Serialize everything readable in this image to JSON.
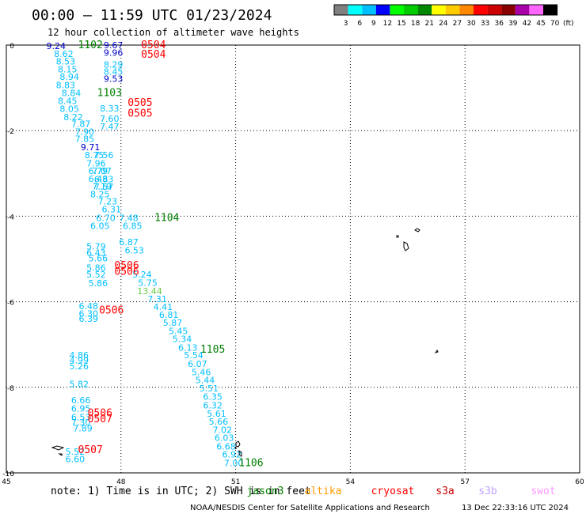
{
  "header": {
    "title": "00:00 – 11:59 UTC 01/23/2024",
    "subtitle": "12 hour collection of altimeter wave heights"
  },
  "legend": {
    "unit": "(ft)",
    "bins": [
      {
        "label": "3",
        "color": "#808080"
      },
      {
        "label": "6",
        "color": "#00ffff"
      },
      {
        "label": "9",
        "color": "#00bfff"
      },
      {
        "label": "12",
        "color": "#0000ff"
      },
      {
        "label": "15",
        "color": "#00ff00"
      },
      {
        "label": "18",
        "color": "#00cc00"
      },
      {
        "label": "21",
        "color": "#008800"
      },
      {
        "label": "24",
        "color": "#ffff00"
      },
      {
        "label": "27",
        "color": "#ffcc00"
      },
      {
        "label": "30",
        "color": "#ff8800"
      },
      {
        "label": "33",
        "color": "#ff0000"
      },
      {
        "label": "36",
        "color": "#cc0000"
      },
      {
        "label": "39",
        "color": "#880000"
      },
      {
        "label": "42",
        "color": "#aa00aa"
      },
      {
        "label": "45",
        "color": "#ff66ff"
      },
      {
        "label": "70",
        "color": "#000000"
      }
    ]
  },
  "footer": {
    "note": "note:  1) Time is in UTC;  2) SWH is in feet",
    "satellites": [
      {
        "name": "jason3",
        "color": "#008000"
      },
      {
        "name": "altika",
        "color": "#ff9900"
      },
      {
        "name": "cryosat",
        "color": "#ff0000"
      },
      {
        "name": "s3a",
        "color": "#cc0000"
      },
      {
        "name": "s3b",
        "color": "#c0a0ff"
      },
      {
        "name": "swot",
        "color": "#ff99ff"
      }
    ],
    "credit": "NOAA/NESDIS Center for Satellite Applications and Research",
    "timestamp": "13 Dec 22:33:16 UTC 2024"
  },
  "chart_data": {
    "type": "scatter",
    "title": "00:00 – 11:59 UTC 01/23/2024",
    "subtitle": "12 hour collection of altimeter wave heights",
    "xlabel": "",
    "ylabel": "",
    "xlim": [
      45,
      60
    ],
    "ylim": [
      -10,
      0
    ],
    "xticks": [
      "45",
      "48",
      "51",
      "54",
      "57",
      "60"
    ],
    "yticks": [
      "0",
      "-2",
      "-4",
      "-6",
      "-8",
      "-10"
    ],
    "grid": true,
    "colors": {
      "light": "#00bfff",
      "mid": "#0000cd",
      "high": "#66cc44",
      "time": "#ff0000",
      "time_alt": "#008000"
    },
    "series": [
      {
        "name": "",
        "points": [
          {
            "x": 46.3,
            "y": -0.02,
            "v": "9.24",
            "c": "mid"
          },
          {
            "x": 46.5,
            "y": -0.2,
            "v": "8.62",
            "c": "light"
          },
          {
            "x": 46.55,
            "y": -0.38,
            "v": "8.53",
            "c": "light"
          },
          {
            "x": 46.6,
            "y": -0.56,
            "v": "8.15",
            "c": "light"
          },
          {
            "x": 46.65,
            "y": -0.74,
            "v": "8.94",
            "c": "light"
          },
          {
            "x": 46.55,
            "y": -0.93,
            "v": "8.83",
            "c": "light"
          },
          {
            "x": 46.7,
            "y": -1.12,
            "v": "8.84",
            "c": "light"
          },
          {
            "x": 46.6,
            "y": -1.3,
            "v": "8.45",
            "c": "light"
          },
          {
            "x": 46.65,
            "y": -1.49,
            "v": "8.05",
            "c": "light"
          },
          {
            "x": 46.75,
            "y": -1.68,
            "v": "8.22",
            "c": "light"
          },
          {
            "x": 46.95,
            "y": -1.84,
            "v": "7.87",
            "c": "light"
          },
          {
            "x": 47.05,
            "y": -2.02,
            "v": "7.90",
            "c": "light"
          },
          {
            "x": 47.05,
            "y": -2.19,
            "v": "7.85",
            "c": "light"
          },
          {
            "x": 47.2,
            "y": -2.38,
            "v": "9.71",
            "c": "mid"
          },
          {
            "x": 47.3,
            "y": -2.57,
            "v": "8.75",
            "c": "light"
          },
          {
            "x": 47.35,
            "y": -2.76,
            "v": "7.96",
            "c": "light"
          },
          {
            "x": 47.4,
            "y": -2.94,
            "v": "6.79",
            "c": "light"
          },
          {
            "x": 47.4,
            "y": -3.12,
            "v": "6.48",
            "c": "light"
          },
          {
            "x": 47.5,
            "y": -3.3,
            "v": "7.19",
            "c": "light"
          },
          {
            "x": 47.45,
            "y": -3.48,
            "v": "8.25",
            "c": "light"
          },
          {
            "x": 47.65,
            "y": -3.65,
            "v": "7.23",
            "c": "light"
          },
          {
            "x": 47.75,
            "y": -3.84,
            "v": "6.31",
            "c": "light"
          },
          {
            "x": 47.6,
            "y": -4.04,
            "v": "6.70",
            "c": "light"
          },
          {
            "x": 47.45,
            "y": -4.22,
            "v": "6.05",
            "c": "light"
          },
          {
            "x": 48.2,
            "y": -4.04,
            "v": "7.48",
            "c": "light"
          },
          {
            "x": 48.3,
            "y": -4.22,
            "v": "6.85",
            "c": "light"
          },
          {
            "x": 48.2,
            "y": -4.6,
            "v": "6.87",
            "c": "light"
          },
          {
            "x": 48.35,
            "y": -4.8,
            "v": "6.53",
            "c": "light"
          },
          {
            "x": 47.4,
            "y": -4.98,
            "v": "5.66",
            "c": "light"
          },
          {
            "x": 47.35,
            "y": -5.36,
            "v": "5.52",
            "c": "light"
          },
          {
            "x": 47.4,
            "y": -5.56,
            "v": "5.86",
            "c": "light"
          },
          {
            "x": 48.55,
            "y": -5.36,
            "v": "5.24",
            "c": "light"
          },
          {
            "x": 48.7,
            "y": -5.55,
            "v": "5.75",
            "c": "light"
          },
          {
            "x": 48.75,
            "y": -5.75,
            "v": "13.44",
            "c": "high"
          },
          {
            "x": 48.95,
            "y": -5.93,
            "v": "7.31",
            "c": "light"
          },
          {
            "x": 49.1,
            "y": -6.12,
            "v": "4.41",
            "c": "light"
          },
          {
            "x": 49.25,
            "y": -6.3,
            "v": "6.81",
            "c": "light"
          },
          {
            "x": 49.35,
            "y": -6.49,
            "v": "5.87",
            "c": "light"
          },
          {
            "x": 49.5,
            "y": -6.68,
            "v": "5.45",
            "c": "light"
          },
          {
            "x": 49.6,
            "y": -6.87,
            "v": "5.34",
            "c": "light"
          },
          {
            "x": 49.75,
            "y": -7.07,
            "v": "6.13",
            "c": "light"
          },
          {
            "x": 49.9,
            "y": -7.25,
            "v": "5.54",
            "c": "light"
          },
          {
            "x": 50.0,
            "y": -7.45,
            "v": "6.07",
            "c": "light"
          },
          {
            "x": 50.1,
            "y": -7.64,
            "v": "5.46",
            "c": "light"
          },
          {
            "x": 50.2,
            "y": -7.83,
            "v": "5.44",
            "c": "light"
          },
          {
            "x": 50.3,
            "y": -8.02,
            "v": "5.51",
            "c": "light"
          },
          {
            "x": 50.4,
            "y": -8.22,
            "v": "6.35",
            "c": "light"
          },
          {
            "x": 50.4,
            "y": -8.42,
            "v": "6.32",
            "c": "light"
          },
          {
            "x": 50.5,
            "y": -8.61,
            "v": "5.61",
            "c": "light"
          },
          {
            "x": 50.55,
            "y": -8.8,
            "v": "5.66",
            "c": "light"
          },
          {
            "x": 50.65,
            "y": -8.99,
            "v": "7.02",
            "c": "light"
          },
          {
            "x": 50.7,
            "y": -9.18,
            "v": "6.03",
            "c": "light"
          },
          {
            "x": 50.75,
            "y": -9.38,
            "v": "6.68",
            "c": "light"
          },
          {
            "x": 50.9,
            "y": -9.57,
            "v": "6.92",
            "c": "light"
          },
          {
            "x": 50.95,
            "y": -9.77,
            "v": "7.00",
            "c": "light"
          },
          {
            "x": 46.9,
            "y": -7.92,
            "v": "5.82",
            "c": "light"
          },
          {
            "x": 46.95,
            "y": -8.3,
            "v": "6.66",
            "c": "light"
          },
          {
            "x": 46.95,
            "y": -8.49,
            "v": "6.95",
            "c": "light"
          },
          {
            "x": 47.0,
            "y": -8.96,
            "v": "7.89",
            "c": "light"
          },
          {
            "x": 46.8,
            "y": -9.5,
            "v": "5.52",
            "c": "light"
          },
          {
            "x": 46.8,
            "y": -9.68,
            "v": "6.60",
            "c": "light"
          },
          {
            "x": 47.8,
            "y": 0.0,
            "v": "9.67",
            "c": "mid"
          },
          {
            "x": 47.8,
            "y": -0.18,
            "v": "9.96",
            "c": "mid"
          },
          {
            "x": 47.8,
            "y": -0.45,
            "v": "8.29",
            "c": "light"
          },
          {
            "x": 47.8,
            "y": -0.62,
            "v": "8.45",
            "c": "light"
          },
          {
            "x": 47.8,
            "y": -0.79,
            "v": "9.53",
            "c": "mid"
          },
          {
            "x": 47.7,
            "y": -1.48,
            "v": "8.33",
            "c": "light"
          },
          {
            "x": 47.7,
            "y": -1.72,
            "v": "7.60",
            "c": "light"
          },
          {
            "x": 47.7,
            "y": -1.9,
            "v": "7.47",
            "c": "light"
          },
          {
            "x": 47.55,
            "y": -2.57,
            "v": "7.56",
            "c": "light"
          },
          {
            "x": 47.5,
            "y": -2.94,
            "v": "7.07",
            "c": "light"
          },
          {
            "x": 47.55,
            "y": -3.13,
            "v": "6.83",
            "c": "light"
          },
          {
            "x": 47.55,
            "y": -3.31,
            "v": "7.57",
            "c": "light"
          },
          {
            "x": 47.35,
            "y": -4.7,
            "v": "5.79",
            "c": "light"
          },
          {
            "x": 47.35,
            "y": -4.85,
            "v": "6.43",
            "c": "light"
          },
          {
            "x": 47.35,
            "y": -5.2,
            "v": "5.86",
            "c": "light"
          },
          {
            "x": 47.15,
            "y": -6.1,
            "v": "6.48",
            "c": "light"
          },
          {
            "x": 47.15,
            "y": -6.28,
            "v": "6.30",
            "c": "light"
          },
          {
            "x": 47.15,
            "y": -6.4,
            "v": "6.39",
            "c": "light"
          },
          {
            "x": 46.9,
            "y": -7.25,
            "v": "4.86",
            "c": "light"
          },
          {
            "x": 46.9,
            "y": -7.37,
            "v": "4.99",
            "c": "light"
          },
          {
            "x": 46.9,
            "y": -7.5,
            "v": "5.26",
            "c": "light"
          },
          {
            "x": 46.95,
            "y": -8.7,
            "v": "6.53",
            "c": "light"
          },
          {
            "x": 46.95,
            "y": -8.82,
            "v": "7.30",
            "c": "light"
          }
        ]
      }
    ],
    "time_labels": [
      {
        "x": 47.2,
        "y": 0.0,
        "v": "1102",
        "c": "time_alt"
      },
      {
        "x": 48.85,
        "y": 0.0,
        "v": "0504",
        "c": "time"
      },
      {
        "x": 48.85,
        "y": -0.22,
        "v": "0504",
        "c": "time"
      },
      {
        "x": 47.7,
        "y": -1.12,
        "v": "1103",
        "c": "time_alt"
      },
      {
        "x": 48.5,
        "y": -1.35,
        "v": "0505",
        "c": "time"
      },
      {
        "x": 48.5,
        "y": -1.6,
        "v": "0505",
        "c": "time"
      },
      {
        "x": 49.2,
        "y": -4.04,
        "v": "1104",
        "c": "time_alt"
      },
      {
        "x": 48.15,
        "y": -5.16,
        "v": "0506",
        "c": "time"
      },
      {
        "x": 48.15,
        "y": -5.3,
        "v": "0506",
        "c": "time"
      },
      {
        "x": 47.75,
        "y": -6.2,
        "v": "0506",
        "c": "time"
      },
      {
        "x": 50.4,
        "y": -7.12,
        "v": "1105",
        "c": "time_alt"
      },
      {
        "x": 47.45,
        "y": -8.6,
        "v": "0506",
        "c": "time"
      },
      {
        "x": 47.45,
        "y": -8.74,
        "v": "0507",
        "c": "time"
      },
      {
        "x": 47.2,
        "y": -9.46,
        "v": "0507",
        "c": "time"
      },
      {
        "x": 51.4,
        "y": -9.77,
        "v": "1106",
        "c": "time_alt"
      }
    ]
  }
}
